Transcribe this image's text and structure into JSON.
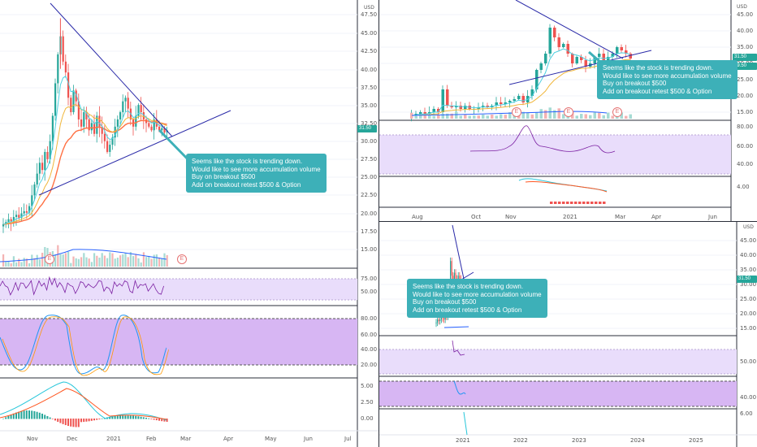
{
  "colors": {
    "up": "#26a69a",
    "down": "#ef5350",
    "trend_line": "#2a2aa8",
    "note_bg": "#3db0b8",
    "rsi_fill": "#e9ddfb",
    "stoch_fill": "#d7b6f3",
    "ema_fast": "#4dd0e1",
    "ema_slow": "#ff7043",
    "ma_mid": "#f0b63a"
  },
  "currency": "USD",
  "note": {
    "line1": "Seems like the stock is trending down.",
    "line2": "Would like to see more accumulation volume",
    "line3": "Buy on breakout $500",
    "line4": "Add on breakout retest $500 & Option"
  },
  "earnings_marker": "E",
  "left_chart": {
    "price_ticks": [
      "47.50",
      "45.00",
      "42.50",
      "40.00",
      "37.50",
      "35.00",
      "32.50",
      "30.00",
      "27.50",
      "25.00",
      "22.50",
      "20.00",
      "17.50",
      "15.00"
    ],
    "last_price": "31.50",
    "rsi_ticks": [
      "75.00",
      "50.00"
    ],
    "stoch_ticks": [
      "80.00",
      "60.00",
      "40.00",
      "20.00"
    ],
    "macd_ticks": [
      "5.00",
      "2.50",
      "0.00"
    ],
    "time_labels": [
      "Nov",
      "Dec",
      "2021",
      "Feb",
      "Mar",
      "Apr",
      "May",
      "Jun",
      "Jul"
    ]
  },
  "top_right_chart": {
    "price_ticks": [
      "45.00",
      "40.00",
      "35.00",
      "30.00",
      "25.00",
      "20.00",
      "15.00"
    ],
    "last_price": "31.50",
    "secondary_badge": "29.50",
    "rsi_ticks": [
      "80.00",
      "60.00",
      "40.00"
    ],
    "macd_ticks": [
      "4.00"
    ],
    "time_labels": [
      "Aug",
      "Oct",
      "Nov",
      "2021",
      "Mar",
      "Apr",
      "Jun"
    ]
  },
  "bottom_right_chart": {
    "price_ticks": [
      "45.00",
      "40.00",
      "35.00",
      "30.00",
      "25.00",
      "20.00",
      "15.00"
    ],
    "last_price": "31.50",
    "rsi_ticks": [
      "50.00"
    ],
    "stoch_ticks": [
      "40.00"
    ],
    "macd_ticks": [
      "6.00"
    ],
    "time_labels": [
      "2021",
      "2022",
      "2023",
      "2024",
      "2025"
    ]
  }
}
